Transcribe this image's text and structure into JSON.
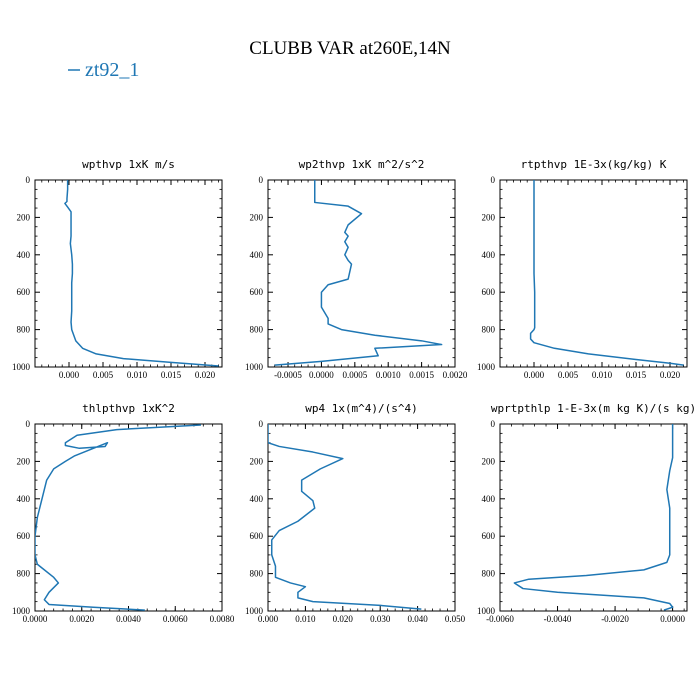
{
  "title": "CLUBB VAR at260E,14N",
  "legend": {
    "label": "zt92_1",
    "color": "#1f77b4"
  },
  "line_color": "#1f77b4",
  "chart_data": [
    {
      "type": "line",
      "title": "wpthvp   1xK m/s",
      "xlim": [
        -0.005,
        0.0225
      ],
      "ylim": [
        1000,
        0
      ],
      "xticks": [
        0.0,
        0.005,
        0.01,
        0.015,
        0.02
      ],
      "xtick_labels": [
        "0.000",
        "0.005",
        "0.010",
        "0.015",
        "0.020"
      ],
      "yticks": [
        0,
        200,
        400,
        600,
        800,
        1000
      ],
      "ytick_labels": [
        "0",
        "200",
        "400",
        "600",
        "800",
        "1000"
      ],
      "series": [
        {
          "x": [
            -0.0002,
            -0.0002,
            -0.0003,
            -0.0003,
            -0.0006,
            -0.0002,
            0.0003,
            0.0003,
            0.0003,
            0.0003,
            0.0002,
            0.0004,
            0.0005,
            0.0005,
            0.0004,
            0.0004,
            0.0004,
            0.0003,
            0.0004,
            0.001,
            0.002,
            0.004,
            0.008,
            0.015,
            0.022
          ],
          "y": [
            0,
            50,
            100,
            115,
            125,
            145,
            170,
            200,
            260,
            300,
            340,
            400,
            450,
            500,
            550,
            600,
            700,
            760,
            800,
            860,
            900,
            930,
            955,
            975,
            995
          ]
        }
      ]
    },
    {
      "type": "line",
      "title": "wp2thvp   1xK m^2/s^2",
      "xlim": [
        -0.0008,
        0.002
      ],
      "ylim": [
        1000,
        0
      ],
      "xticks": [
        -0.0005,
        0.0,
        0.0005,
        0.001,
        0.0015,
        0.002
      ],
      "xtick_labels": [
        "-0.0005",
        "0.0000",
        "0.0005",
        "0.0010",
        "0.0015",
        "0.0020"
      ],
      "yticks": [
        0,
        200,
        400,
        600,
        800,
        1000
      ],
      "ytick_labels": [
        "0",
        "200",
        "400",
        "600",
        "800",
        "1000"
      ],
      "series": [
        {
          "x": [
            -0.0001,
            -0.0001,
            -0.0001,
            0.0004,
            0.0006,
            0.0004,
            0.00035,
            0.0004,
            0.00035,
            0.0004,
            0.00035,
            0.0004,
            0.00045,
            0.0004,
            0.0001,
            0.0,
            0.0,
            0.0001,
            0.0001,
            0.0003,
            0.0008,
            0.0015,
            0.0018,
            0.0008,
            0.00085,
            0.0,
            -0.0007
          ],
          "y": [
            0,
            50,
            120,
            140,
            180,
            240,
            280,
            300,
            330,
            360,
            400,
            430,
            450,
            530,
            560,
            600,
            680,
            740,
            770,
            800,
            830,
            860,
            880,
            900,
            940,
            970,
            990
          ]
        }
      ]
    },
    {
      "type": "line",
      "title": "rtpthvp   1E-3x(kg/kg) K",
      "xlim": [
        -0.005,
        0.0225
      ],
      "ylim": [
        1000,
        0
      ],
      "xticks": [
        0.0,
        0.005,
        0.01,
        0.015,
        0.02
      ],
      "xtick_labels": [
        "0.000",
        "0.005",
        "0.010",
        "0.015",
        "0.020"
      ],
      "yticks": [
        0,
        200,
        400,
        600,
        800,
        1000
      ],
      "ytick_labels": [
        "0",
        "200",
        "400",
        "600",
        "800",
        "1000"
      ],
      "series": [
        {
          "x": [
            0.0,
            0.0,
            0.0,
            0.0,
            0.0001,
            0.0001,
            0.0001,
            0.0001,
            0.0,
            -0.0005,
            -0.0005,
            0.0,
            0.003,
            0.008,
            0.015,
            0.02,
            0.022
          ],
          "y": [
            0,
            100,
            300,
            500,
            600,
            700,
            760,
            790,
            800,
            820,
            850,
            870,
            900,
            930,
            960,
            980,
            990
          ]
        }
      ]
    },
    {
      "type": "line",
      "title": "thlpthvp   1xK^2",
      "xlim": [
        0.0,
        0.008
      ],
      "ylim": [
        1000,
        0
      ],
      "xticks": [
        0.0,
        0.002,
        0.004,
        0.006,
        0.008
      ],
      "xtick_labels": [
        "0.0000",
        "0.0020",
        "0.0040",
        "0.0060",
        "0.0080"
      ],
      "yticks": [
        0,
        200,
        400,
        600,
        800,
        1000
      ],
      "ytick_labels": [
        "0",
        "200",
        "400",
        "600",
        "800",
        "1000"
      ],
      "series": [
        {
          "x": [
            0.0071,
            0.0035,
            0.0018,
            0.0013,
            0.0013,
            0.0019,
            0.003,
            0.0031,
            0.0017,
            0.0013,
            0.0008,
            0.0005,
            0.0003,
            0.0001,
            0.0,
            0.0,
            0.0001,
            0.0003,
            0.0008,
            0.001,
            0.0006,
            0.0004,
            0.0006,
            0.0025,
            0.0047
          ],
          "y": [
            5,
            30,
            60,
            100,
            115,
            130,
            120,
            100,
            170,
            200,
            240,
            300,
            400,
            500,
            600,
            700,
            750,
            770,
            820,
            850,
            900,
            940,
            965,
            980,
            995
          ]
        }
      ]
    },
    {
      "type": "line",
      "title": "wp4   1x(m^4)/(s^4)",
      "xlim": [
        0.0,
        0.05
      ],
      "ylim": [
        1000,
        0
      ],
      "xticks": [
        0.0,
        0.01,
        0.02,
        0.03,
        0.04,
        0.05
      ],
      "xtick_labels": [
        "0.000",
        "0.010",
        "0.020",
        "0.030",
        "0.040",
        "0.050"
      ],
      "yticks": [
        0,
        200,
        400,
        600,
        800,
        1000
      ],
      "ytick_labels": [
        "0",
        "200",
        "400",
        "600",
        "800",
        "1000"
      ],
      "series": [
        {
          "x": [
            0.0,
            0.0,
            0.003,
            0.012,
            0.02,
            0.014,
            0.009,
            0.009,
            0.012,
            0.0125,
            0.008,
            0.003,
            0.001,
            0.001,
            0.002,
            0.002,
            0.006,
            0.01,
            0.008,
            0.008,
            0.012,
            0.03,
            0.041
          ],
          "y": [
            0,
            100,
            120,
            150,
            185,
            240,
            300,
            360,
            410,
            450,
            520,
            570,
            620,
            700,
            760,
            820,
            850,
            870,
            900,
            930,
            950,
            970,
            990
          ]
        }
      ]
    },
    {
      "type": "line",
      "title": "wprtpthlp   1-E-3x(m kg K)/(s kg)",
      "xlim": [
        -0.006,
        0.0005
      ],
      "ylim": [
        1000,
        0
      ],
      "xticks": [
        -0.006,
        -0.004,
        -0.002,
        0.0
      ],
      "xtick_labels": [
        "-0.0060",
        "-0.0040",
        "-0.0020",
        "0.0000"
      ],
      "yticks": [
        0,
        200,
        400,
        600,
        800,
        1000
      ],
      "ytick_labels": [
        "0",
        "200",
        "400",
        "600",
        "800",
        "1000"
      ],
      "series": [
        {
          "x": [
            0.0,
            0.0,
            0.0,
            -0.0001,
            -0.0002,
            -0.0001,
            -0.0001,
            -0.0001,
            -0.0002,
            -0.001,
            -0.003,
            -0.005,
            -0.0055,
            -0.0052,
            -0.004,
            -0.001,
            -0.0001,
            0.0,
            -0.0003
          ],
          "y": [
            0,
            100,
            180,
            250,
            350,
            450,
            600,
            700,
            740,
            780,
            810,
            830,
            850,
            880,
            900,
            930,
            960,
            980,
            995
          ]
        }
      ]
    }
  ]
}
